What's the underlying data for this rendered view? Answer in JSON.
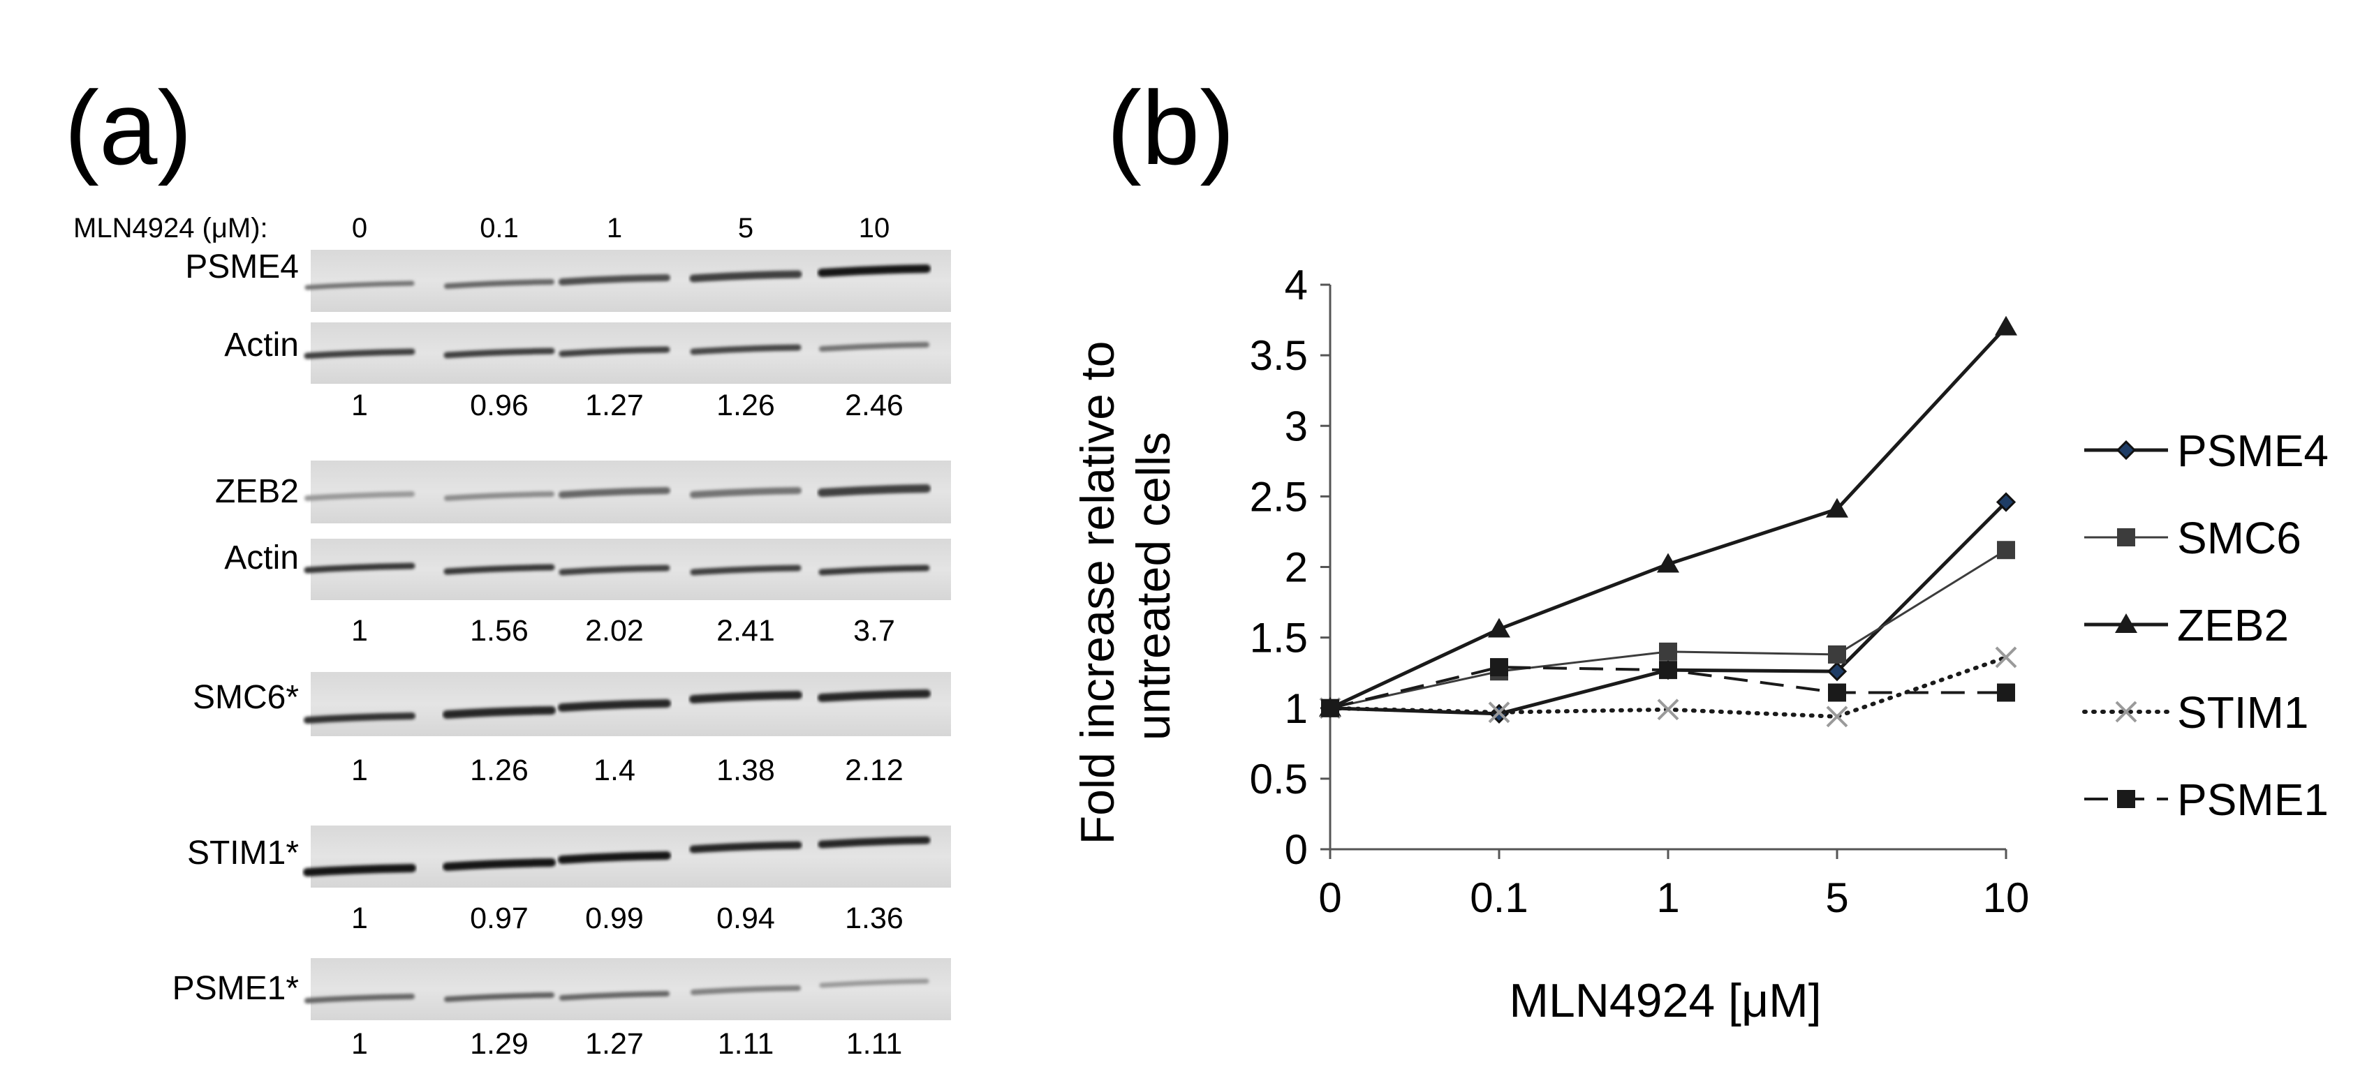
{
  "panel_a": {
    "label": "(a)",
    "header_label": "MLN4924 (μM):",
    "concentrations": [
      "0",
      "0.1",
      "1",
      "5",
      "10"
    ],
    "blots": [
      {
        "name": "PSME4",
        "loading_control": "Actin",
        "values": [
          "1",
          "0.96",
          "1.27",
          "1.26",
          "2.46"
        ]
      },
      {
        "name": "ZEB2",
        "loading_control": "Actin",
        "values": [
          "1",
          "1.56",
          "2.02",
          "2.41",
          "3.7"
        ]
      },
      {
        "name": "SMC6*",
        "values": [
          "1",
          "1.26",
          "1.4",
          "1.38",
          "2.12"
        ]
      },
      {
        "name": "STIM1*",
        "values": [
          "1",
          "0.97",
          "0.99",
          "0.94",
          "1.36"
        ]
      },
      {
        "name": "PSME1*",
        "values": [
          "1",
          "1.29",
          "1.27",
          "1.11",
          "1.11"
        ]
      }
    ]
  },
  "panel_b": {
    "label": "(b)"
  },
  "chart_data": {
    "type": "line",
    "xlabel": "MLN4924 [μM]",
    "ylabel": "Fold increase relative to untreated cells",
    "ylabel_lines": [
      "Fold increase relative to",
      "untreated cells"
    ],
    "categories": [
      "0",
      "0.1",
      "1",
      "5",
      "10"
    ],
    "ylim": [
      0,
      4
    ],
    "yticks": [
      "0",
      "0.5",
      "1",
      "1.5",
      "2",
      "2.5",
      "3",
      "3.5",
      "4"
    ],
    "grid": false,
    "legend_position": "right",
    "series": [
      {
        "name": "PSME4",
        "values": [
          1,
          0.96,
          1.27,
          1.26,
          2.46
        ],
        "marker": "diamond",
        "line": "solid",
        "color": "#1a1a1a"
      },
      {
        "name": "SMC6",
        "values": [
          1,
          1.26,
          1.4,
          1.38,
          2.12
        ],
        "marker": "square",
        "line": "solid-thin",
        "color": "#3c3c3c"
      },
      {
        "name": "ZEB2",
        "values": [
          1,
          1.56,
          2.02,
          2.41,
          3.7
        ],
        "marker": "triangle",
        "line": "solid",
        "color": "#1a1a1a"
      },
      {
        "name": "STIM1",
        "values": [
          1,
          0.97,
          0.99,
          0.94,
          1.36
        ],
        "marker": "x",
        "line": "dotted",
        "color": "#1a1a1a"
      },
      {
        "name": "PSME1",
        "values": [
          1,
          1.29,
          1.27,
          1.11,
          1.11
        ],
        "marker": "square",
        "line": "dashed",
        "color": "#1a1a1a"
      }
    ]
  }
}
